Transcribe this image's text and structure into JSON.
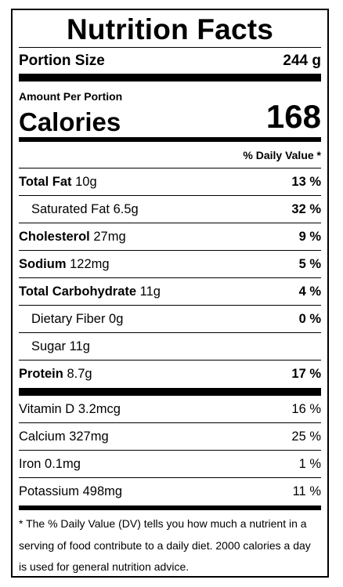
{
  "title": "Nutrition Facts",
  "portion": {
    "label": "Portion Size",
    "value": "244 g"
  },
  "amount_label": "Amount Per Portion",
  "calories": {
    "label": "Calories",
    "value": "168"
  },
  "dv_header": "% Daily Value *",
  "nutrients": [
    {
      "name": "Total Fat",
      "amount": "10g",
      "dv": "13 %"
    },
    {
      "name": "Saturated Fat",
      "amount": "6.5g",
      "dv": "32 %"
    },
    {
      "name": "Cholesterol",
      "amount": "27mg",
      "dv": "9 %"
    },
    {
      "name": "Sodium",
      "amount": "122mg",
      "dv": "5 %"
    },
    {
      "name": "Total Carbohydrate",
      "amount": "11g",
      "dv": "4 %"
    },
    {
      "name": "Dietary Fiber",
      "amount": "0g",
      "dv": "0 %"
    },
    {
      "name": "Sugar",
      "amount": "11g",
      "dv": ""
    },
    {
      "name": "Protein",
      "amount": "8.7g",
      "dv": "17 %"
    }
  ],
  "vitamins": [
    {
      "name": "Vitamin D",
      "amount": "3.2mcg",
      "dv": "16 %"
    },
    {
      "name": "Calcium",
      "amount": "327mg",
      "dv": "25 %"
    },
    {
      "name": "Iron",
      "amount": "0.1mg",
      "dv": "1 %"
    },
    {
      "name": "Potassium",
      "amount": "498mg",
      "dv": "11 %"
    }
  ],
  "footnote": "* The % Daily Value (DV) tells you how much a nutrient in a serving of food contribute to a daily diet. 2000 calories a day is used for general nutrition advice."
}
